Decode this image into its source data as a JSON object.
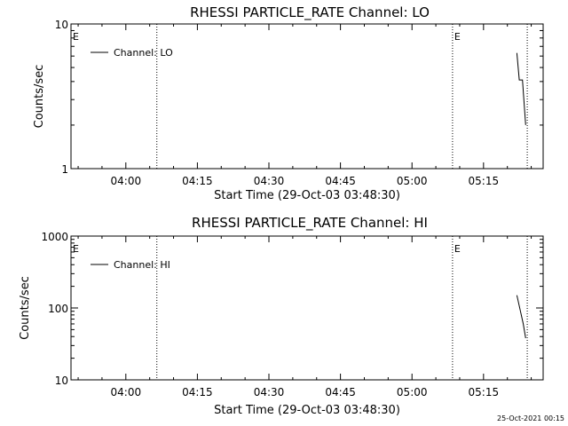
{
  "chart_data": [
    {
      "type": "line",
      "title": "RHESSI PARTICLE_RATE Channel: LO",
      "xlabel": "Start Time (29-Oct-03 03:48:30)",
      "ylabel": "Counts/sec",
      "yscale": "log",
      "ylim": [
        1,
        10
      ],
      "xlim": [
        "03:48:30",
        "05:27:30"
      ],
      "x_ticks": [
        "04:00",
        "04:15",
        "04:30",
        "04:45",
        "05:00",
        "05:15"
      ],
      "y_ticks": [
        "1",
        "10"
      ],
      "grid": false,
      "legend_position": "top-left",
      "series": [
        {
          "name": "Channel: LO",
          "x": [
            "05:22:00",
            "05:22:30",
            "05:23:10",
            "05:23:50"
          ],
          "values": [
            6.3,
            4.1,
            4.1,
            2.0
          ]
        }
      ],
      "markers": [
        {
          "label": "E",
          "time": "03:48:30"
        },
        {
          "label": "",
          "time": "04:06:30"
        },
        {
          "label": "E",
          "time": "05:08:30"
        },
        {
          "label": "",
          "time": "05:24:10"
        }
      ]
    },
    {
      "type": "line",
      "title": "RHESSI PARTICLE_RATE Channel: HI",
      "xlabel": "Start Time (29-Oct-03 03:48:30)",
      "ylabel": "Counts/sec",
      "yscale": "log",
      "ylim": [
        10,
        1000
      ],
      "xlim": [
        "03:48:30",
        "05:27:30"
      ],
      "x_ticks": [
        "04:00",
        "04:15",
        "04:30",
        "04:45",
        "05:00",
        "05:15"
      ],
      "y_ticks": [
        "10",
        "100",
        "1000"
      ],
      "grid": false,
      "legend_position": "top-left",
      "series": [
        {
          "name": "Channel: HI",
          "x": [
            "05:22:00",
            "05:22:40",
            "05:23:20",
            "05:23:50"
          ],
          "values": [
            150,
            95,
            60,
            38
          ]
        }
      ],
      "markers": [
        {
          "label": "E",
          "time": "03:48:30"
        },
        {
          "label": "",
          "time": "04:06:30"
        },
        {
          "label": "E",
          "time": "05:08:30"
        },
        {
          "label": "",
          "time": "05:24:10"
        }
      ]
    }
  ],
  "footer": {
    "timestamp": "25-Oct-2021 00:15"
  }
}
